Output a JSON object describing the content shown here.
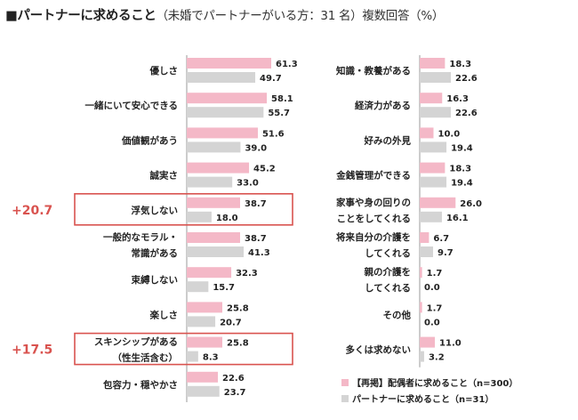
{
  "title": {
    "main": "■パートナーに求めること",
    "sub": "（未婚でパートナーがいる方：31 名）複数回答（%）"
  },
  "colors": {
    "pink": "#f4b8c7",
    "gray": "#d4d4d4",
    "highlight": "#d9534f"
  },
  "legend": [
    {
      "label": "【再掲】配偶者に求めること（n=300）"
    },
    {
      "label": "パートナーに求めること（n=31）"
    }
  ],
  "highlight_diffs": [
    "+20.7",
    "+17.5"
  ],
  "chart_data": {
    "type": "bar",
    "orientation": "horizontal",
    "series": [
      {
        "name": "【再掲】配偶者に求めること（n=300）"
      },
      {
        "name": "パートナーに求めること（n=31）"
      }
    ],
    "panels": [
      {
        "categories": [
          [
            "優しさ"
          ],
          [
            "一緒にいて安心できる"
          ],
          [
            "価値観があう"
          ],
          [
            "誠実さ"
          ],
          [
            "浮気しない"
          ],
          [
            "一般的なモラル・",
            "常識がある"
          ],
          [
            "束縛しない"
          ],
          [
            "楽しさ"
          ],
          [
            "スキンシップがある",
            "（性生活含む）"
          ],
          [
            "包容力・穏やかさ"
          ]
        ],
        "spouse": [
          61.3,
          58.1,
          51.6,
          45.2,
          38.7,
          38.7,
          32.3,
          25.8,
          25.8,
          22.6
        ],
        "partner": [
          49.7,
          55.7,
          39.0,
          33.0,
          18.0,
          41.3,
          15.7,
          20.7,
          8.3,
          23.7
        ],
        "highlighted": [
          4,
          8
        ],
        "highlight_labels": [
          "+20.7",
          "+17.5"
        ]
      },
      {
        "categories": [
          [
            "知識・教養がある"
          ],
          [
            "経済力がある"
          ],
          [
            "好みの外見"
          ],
          [
            "金銭管理ができる"
          ],
          [
            "家事や身の回りの",
            "ことをしてくれる"
          ],
          [
            "将来自分の介護を",
            "してくれる"
          ],
          [
            "親の介護を",
            "してくれる"
          ],
          [
            "その他"
          ],
          [
            "多くは求めない"
          ]
        ],
        "spouse": [
          18.3,
          16.3,
          10.0,
          18.3,
          26.0,
          6.7,
          1.7,
          1.7,
          11.0
        ],
        "partner": [
          22.6,
          22.6,
          19.4,
          19.4,
          16.1,
          9.7,
          0.0,
          0.0,
          3.2
        ]
      }
    ]
  }
}
